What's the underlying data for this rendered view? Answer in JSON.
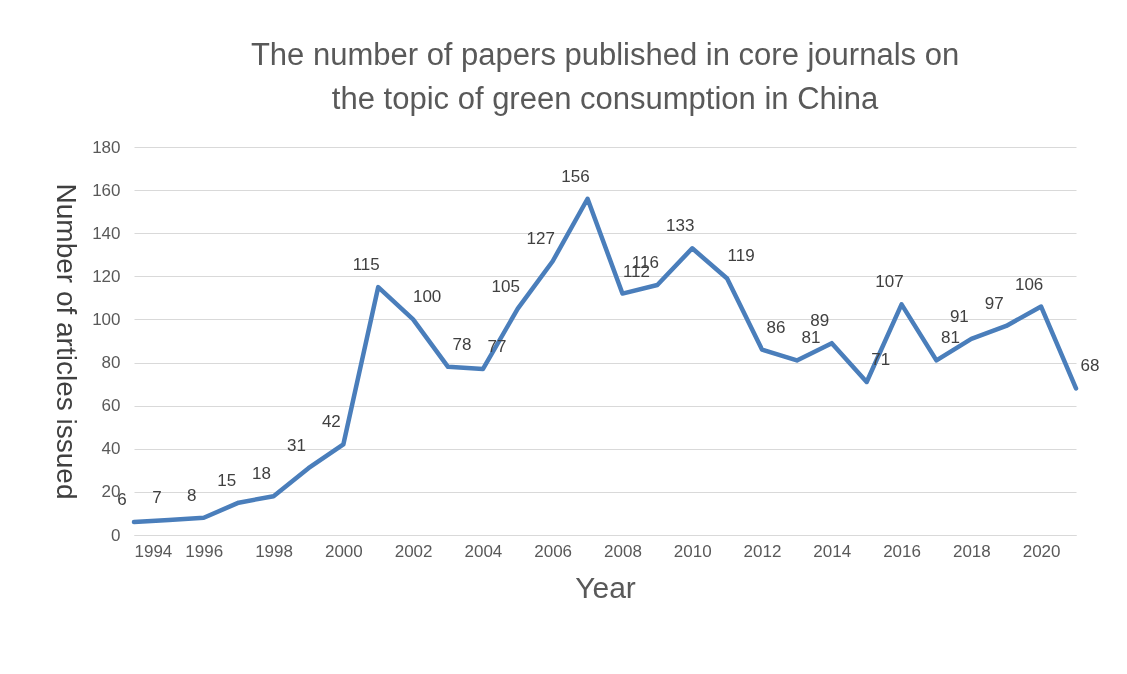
{
  "chart_data": {
    "type": "line",
    "title": "The number of papers published in core journals on the topic of green consumption in China",
    "xlabel": "Year",
    "ylabel": "Number of articles issued",
    "x": [
      1994,
      1995,
      1996,
      1997,
      1998,
      1999,
      2000,
      2001,
      2002,
      2003,
      2004,
      2005,
      2006,
      2007,
      2008,
      2009,
      2010,
      2011,
      2012,
      2013,
      2014,
      2015,
      2016,
      2017,
      2018,
      2019,
      2020,
      2021
    ],
    "series": [
      {
        "color": "#4a7ebb",
        "values": [
          6,
          7,
          8,
          15,
          18,
          31,
          42,
          115,
          100,
          78,
          77,
          105,
          127,
          156,
          112,
          116,
          133,
          119,
          86,
          81,
          89,
          71,
          107,
          81,
          91,
          97,
          106,
          68
        ]
      }
    ],
    "xlim": [
      1994,
      2021
    ],
    "xticks": [
      1994,
      1996,
      1998,
      2000,
      2002,
      2004,
      2006,
      2008,
      2010,
      2012,
      2014,
      2016,
      2018,
      2020
    ],
    "ylim": [
      0,
      180
    ],
    "yticks": [
      0,
      20,
      40,
      60,
      80,
      100,
      120,
      140,
      160,
      180
    ],
    "grid": "y",
    "data_labels": true,
    "marker": "none",
    "line_style": "solid"
  }
}
